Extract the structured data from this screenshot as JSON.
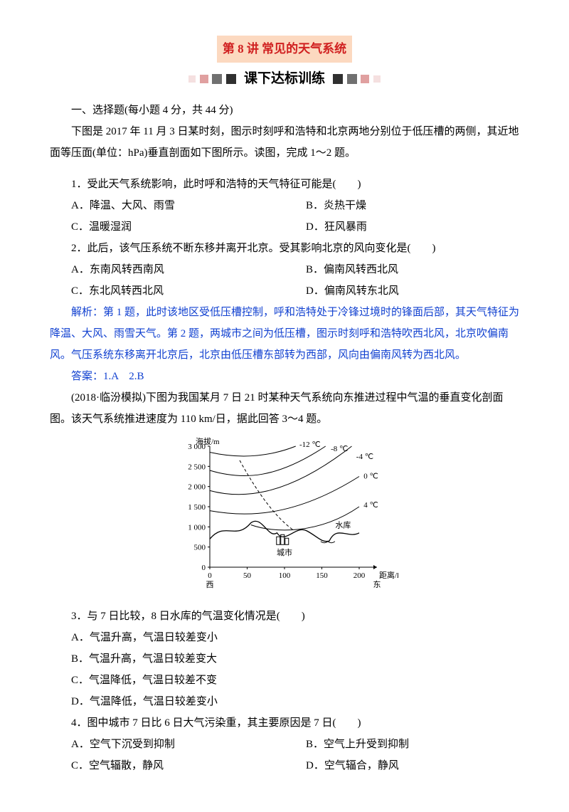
{
  "title": "第 8 讲 常见的天气系统",
  "subtitle": "课下达标训练",
  "section1_heading": "一、选择题(每小题 4 分，共 44 分)",
  "intro1": "下图是 2017 年 11 月 3 日某时刻，图示时刻呼和浩特和北京两地分别位于低压槽的两侧，其近地面等压面(单位：hPa)垂直剖面如下图所示。读图，完成 1～2 题。",
  "q1": {
    "stem": "1．受此天气系统影响，此时呼和浩特的天气特征可能是(　　)",
    "A": "A．降温、大风、雨雪",
    "B": "B．炎热干燥",
    "C": "C．温暖湿润",
    "D": "D．狂风暴雨"
  },
  "q2": {
    "stem": "2．此后，该气压系统不断东移并离开北京。受其影响北京的风向变化是(　　)",
    "A": "A．东南风转西南风",
    "B": "B．偏南风转西北风",
    "C": "C．东北风转西北风",
    "D": "D．偏南风转东北风"
  },
  "exp12": "解析：第 1 题，此时该地区受低压槽控制，呼和浩特处于冷锋过境时的锋面后部，其天气特征为降温、大风、雨雪天气。第 2 题，两城市之间为低压槽，图示时刻呼和浩特吹西北风，北京吹偏南风。气压系统东移离开北京后，北京由低压槽东部转为西部，风向由偏南风转为西北风。",
  "ans12": "答案：1.A　2.B",
  "intro2": "(2018·临汾模拟)下图为我国某月 7 日 21 时某种天气系统向东推进过程中气温的垂直变化剖面图。该天气系统推进速度为 110 km/日，据此回答 3～4 题。",
  "q3": {
    "stem": "3．与 7 日比较，8 日水库的气温变化情况是(　　)",
    "A": "A．气温升高，气温日较差变小",
    "B": "B．气温升高，气温日较差变大",
    "C": "C．气温降低，气温日较差不变",
    "D": "D．气温降低，气温日较差变小"
  },
  "q4": {
    "stem": "4．图中城市 7 日比 6 日大气污染重，其主要原因是 7 日(　　)",
    "A": "A．空气下沉受到抑制",
    "B": "B．空气上升受到抑制",
    "C": "C．空气辐散，静风",
    "D": "D．空气辐合，静风"
  },
  "chart": {
    "y_label": "海拔/m",
    "y_ticks": [
      "3 000",
      "2 500",
      "2 000",
      "1 500",
      "1 000",
      "500",
      "0"
    ],
    "x_ticks": [
      "0",
      "50",
      "100",
      "150",
      "200"
    ],
    "x_label_right": "距离/km",
    "x_left": "西",
    "x_right": "东",
    "iso_labels": [
      "-12 ℃",
      "-8 ℃",
      "-4 ℃",
      "0 ℃",
      "4 ℃"
    ],
    "city_label": "城市",
    "reservoir_label": "水库",
    "stroke": "#000000",
    "font": "11"
  }
}
